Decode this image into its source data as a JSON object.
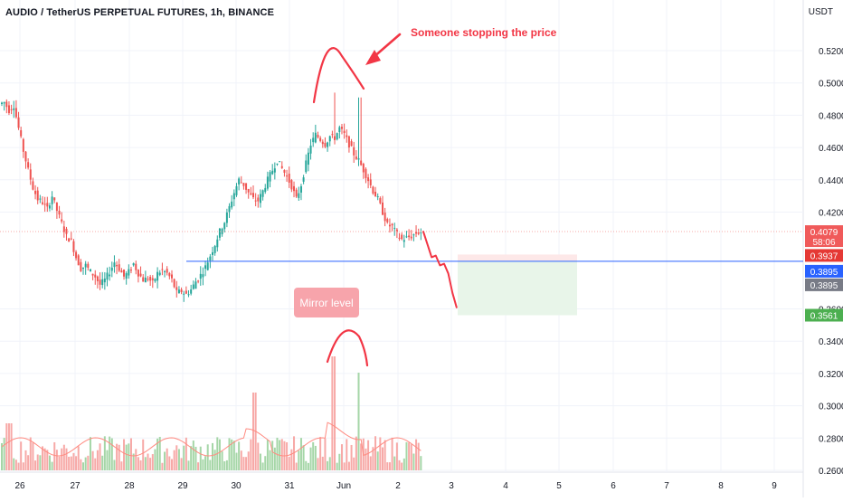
{
  "header": {
    "title": "AUDIO / TetherUS PERPETUAL FUTURES, 1h, BINANCE",
    "currency": "USDT"
  },
  "colors": {
    "up": "#26a69a",
    "down": "#ef5350",
    "blue_line": "#2962ff",
    "annotation": "#f23645",
    "volume_up": "#a5d6a7",
    "volume_down": "#f7a9a7",
    "volume_ma": "#ff8a80",
    "tp_zone": "#e8f5e9",
    "sl_zone": "#fde8e8"
  },
  "annotations": {
    "top_text": "Someone stopping the price",
    "mirror_label": "Mirror level"
  },
  "price_labels": {
    "last": "0.4079",
    "countdown": "58:06",
    "stop": "0.3937",
    "entry": "0.3895",
    "mirror": "0.3895",
    "target": "0.3561"
  },
  "chart_data": {
    "type": "candlestick",
    "title": "AUDIO / TetherUS PERPETUAL FUTURES, 1h, BINANCE",
    "y_axis_unit": "USDT",
    "y_ticks": [
      "0.5200",
      "0.5000",
      "0.4800",
      "0.4600",
      "0.4400",
      "0.4200",
      "0.3600",
      "0.3400",
      "0.3200",
      "0.3000",
      "0.2800",
      "0.2600"
    ],
    "y_tick_values": [
      0.52,
      0.5,
      0.48,
      0.46,
      0.44,
      0.42,
      0.36,
      0.34,
      0.32,
      0.3,
      0.28,
      0.26
    ],
    "x_ticks": [
      "26",
      "27",
      "28",
      "29",
      "30",
      "31",
      "Jun",
      "2",
      "3",
      "4",
      "5",
      "6",
      "7",
      "8",
      "9"
    ],
    "price_path": [
      [
        0.49,
        0.487
      ],
      [
        0.478,
        0.488
      ],
      [
        0.47,
        0.483
      ],
      [
        0.476,
        0.486
      ],
      [
        0.465,
        0.472
      ],
      [
        0.452,
        0.458
      ],
      [
        0.44,
        0.446
      ],
      [
        0.43,
        0.435
      ],
      [
        0.424,
        0.428
      ],
      [
        0.42,
        0.426
      ],
      [
        0.425,
        0.422
      ],
      [
        0.428,
        0.43
      ],
      [
        0.418,
        0.421
      ],
      [
        0.41,
        0.413
      ],
      [
        0.404,
        0.405
      ],
      [
        0.398,
        0.402
      ],
      [
        0.388,
        0.392
      ],
      [
        0.384,
        0.385
      ],
      [
        0.382,
        0.387
      ],
      [
        0.384,
        0.383
      ],
      [
        0.375,
        0.38
      ],
      [
        0.372,
        0.375
      ],
      [
        0.376,
        0.378
      ],
      [
        0.38,
        0.383
      ],
      [
        0.386,
        0.389
      ],
      [
        0.382,
        0.385
      ],
      [
        0.378,
        0.38
      ],
      [
        0.384,
        0.383
      ],
      [
        0.387,
        0.388
      ],
      [
        0.38,
        0.382
      ],
      [
        0.376,
        0.378
      ],
      [
        0.378,
        0.379
      ],
      [
        0.374,
        0.376
      ],
      [
        0.38,
        0.382
      ],
      [
        0.381,
        0.384
      ],
      [
        0.379,
        0.382
      ],
      [
        0.375,
        0.378
      ],
      [
        0.372,
        0.37
      ],
      [
        0.368,
        0.371
      ],
      [
        0.366,
        0.369
      ],
      [
        0.371,
        0.372
      ],
      [
        0.374,
        0.377
      ],
      [
        0.378,
        0.381
      ],
      [
        0.384,
        0.386
      ],
      [
        0.39,
        0.393
      ],
      [
        0.398,
        0.4
      ],
      [
        0.405,
        0.408
      ],
      [
        0.413,
        0.414
      ],
      [
        0.42,
        0.423
      ],
      [
        0.429,
        0.432
      ],
      [
        0.437,
        0.44
      ],
      [
        0.435,
        0.437
      ],
      [
        0.43,
        0.432
      ],
      [
        0.427,
        0.428
      ],
      [
        0.425,
        0.427
      ],
      [
        0.431,
        0.433
      ],
      [
        0.436,
        0.44
      ],
      [
        0.443,
        0.446
      ],
      [
        0.448,
        0.452
      ],
      [
        0.444,
        0.447
      ],
      [
        0.438,
        0.442
      ],
      [
        0.431,
        0.436
      ],
      [
        0.425,
        0.428
      ],
      [
        0.433,
        0.437
      ],
      [
        0.445,
        0.45
      ],
      [
        0.458,
        0.462
      ],
      [
        0.467,
        0.468
      ],
      [
        0.462,
        0.465
      ],
      [
        0.459,
        0.462
      ],
      [
        0.464,
        0.467
      ],
      [
        0.462,
        0.466
      ],
      [
        0.47,
        0.472
      ],
      [
        0.465,
        0.468
      ],
      [
        0.46,
        0.462
      ],
      [
        0.453,
        0.456
      ],
      [
        0.448,
        0.452
      ],
      [
        0.444,
        0.446
      ],
      [
        0.437,
        0.44
      ],
      [
        0.431,
        0.433
      ],
      [
        0.425,
        0.428
      ],
      [
        0.418,
        0.42
      ],
      [
        0.414,
        0.412
      ],
      [
        0.409,
        0.411
      ],
      [
        0.404,
        0.406
      ],
      [
        0.402,
        0.403
      ],
      [
        0.405,
        0.404
      ],
      [
        0.403,
        0.405
      ],
      [
        0.406,
        0.407
      ],
      [
        0.405,
        0.4079
      ]
    ],
    "projection": [
      0.4079,
      0.4,
      0.392,
      0.393,
      0.387,
      0.388,
      0.382,
      0.37,
      0.361
    ],
    "levels": {
      "mirror": 0.3895,
      "stop": 0.3937,
      "target": 0.3561,
      "last": 0.4079
    },
    "volume_range": [
      0.26,
      0.335
    ]
  }
}
